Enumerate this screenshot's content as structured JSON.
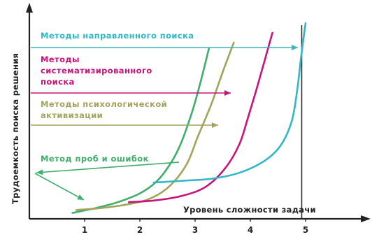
{
  "chart_data": {
    "type": "line",
    "title": "",
    "xlabel": "Уровень сложности задачи",
    "ylabel": "Трудоемкость поиска решения",
    "xlim": [
      0,
      6
    ],
    "ylim": [
      0,
      10
    ],
    "x_ticks": [
      "1",
      "2",
      "3",
      "4",
      "5"
    ],
    "grid": false,
    "marker_x": 4.93,
    "series": [
      {
        "name": "Метод проб и ошибок",
        "color": "#3fae6a",
        "points": [
          [
            0.78,
            0.3
          ],
          [
            1.2,
            0.55
          ],
          [
            1.6,
            0.85
          ],
          [
            2.0,
            1.3
          ],
          [
            2.3,
            1.9
          ],
          [
            2.55,
            2.8
          ],
          [
            2.75,
            3.9
          ],
          [
            2.95,
            5.5
          ],
          [
            3.1,
            7.0
          ],
          [
            3.25,
            8.7
          ]
        ]
      },
      {
        "name": "Методы психологической активизации",
        "color": "#a2a45e",
        "points": [
          [
            0.85,
            0.45
          ],
          [
            1.3,
            0.55
          ],
          [
            1.8,
            0.75
          ],
          [
            2.2,
            1.05
          ],
          [
            2.55,
            1.7
          ],
          [
            2.85,
            2.8
          ],
          [
            3.05,
            4.2
          ],
          [
            3.3,
            5.9
          ],
          [
            3.5,
            7.5
          ],
          [
            3.7,
            9.0
          ]
        ]
      },
      {
        "name": "Методы систематизированного поиска",
        "color": "#c8147a",
        "points": [
          [
            1.8,
            0.85
          ],
          [
            2.3,
            0.95
          ],
          [
            2.8,
            1.2
          ],
          [
            3.2,
            1.65
          ],
          [
            3.55,
            2.6
          ],
          [
            3.8,
            3.8
          ],
          [
            3.95,
            5.1
          ],
          [
            4.1,
            6.5
          ],
          [
            4.25,
            8.0
          ],
          [
            4.4,
            9.5
          ]
        ]
      },
      {
        "name": "Методы направленного поиска",
        "color": "#30b8c4",
        "points": [
          [
            2.25,
            1.85
          ],
          [
            2.8,
            1.95
          ],
          [
            3.3,
            2.05
          ],
          [
            3.8,
            2.35
          ],
          [
            4.25,
            2.95
          ],
          [
            4.55,
            3.75
          ],
          [
            4.75,
            5.0
          ],
          [
            4.85,
            6.6
          ],
          [
            4.92,
            8.3
          ],
          [
            5.0,
            10.0
          ]
        ]
      }
    ],
    "annotations": [
      {
        "series": 3,
        "lines": [
          "Методы направленного поиска"
        ]
      },
      {
        "series": 2,
        "lines": [
          "Методы",
          "систематизированного",
          "поиска"
        ]
      },
      {
        "series": 1,
        "lines": [
          "Методы психологической",
          "активизации"
        ]
      },
      {
        "series": 0,
        "lines": [
          "Метод проб и ошибок"
        ]
      }
    ]
  }
}
